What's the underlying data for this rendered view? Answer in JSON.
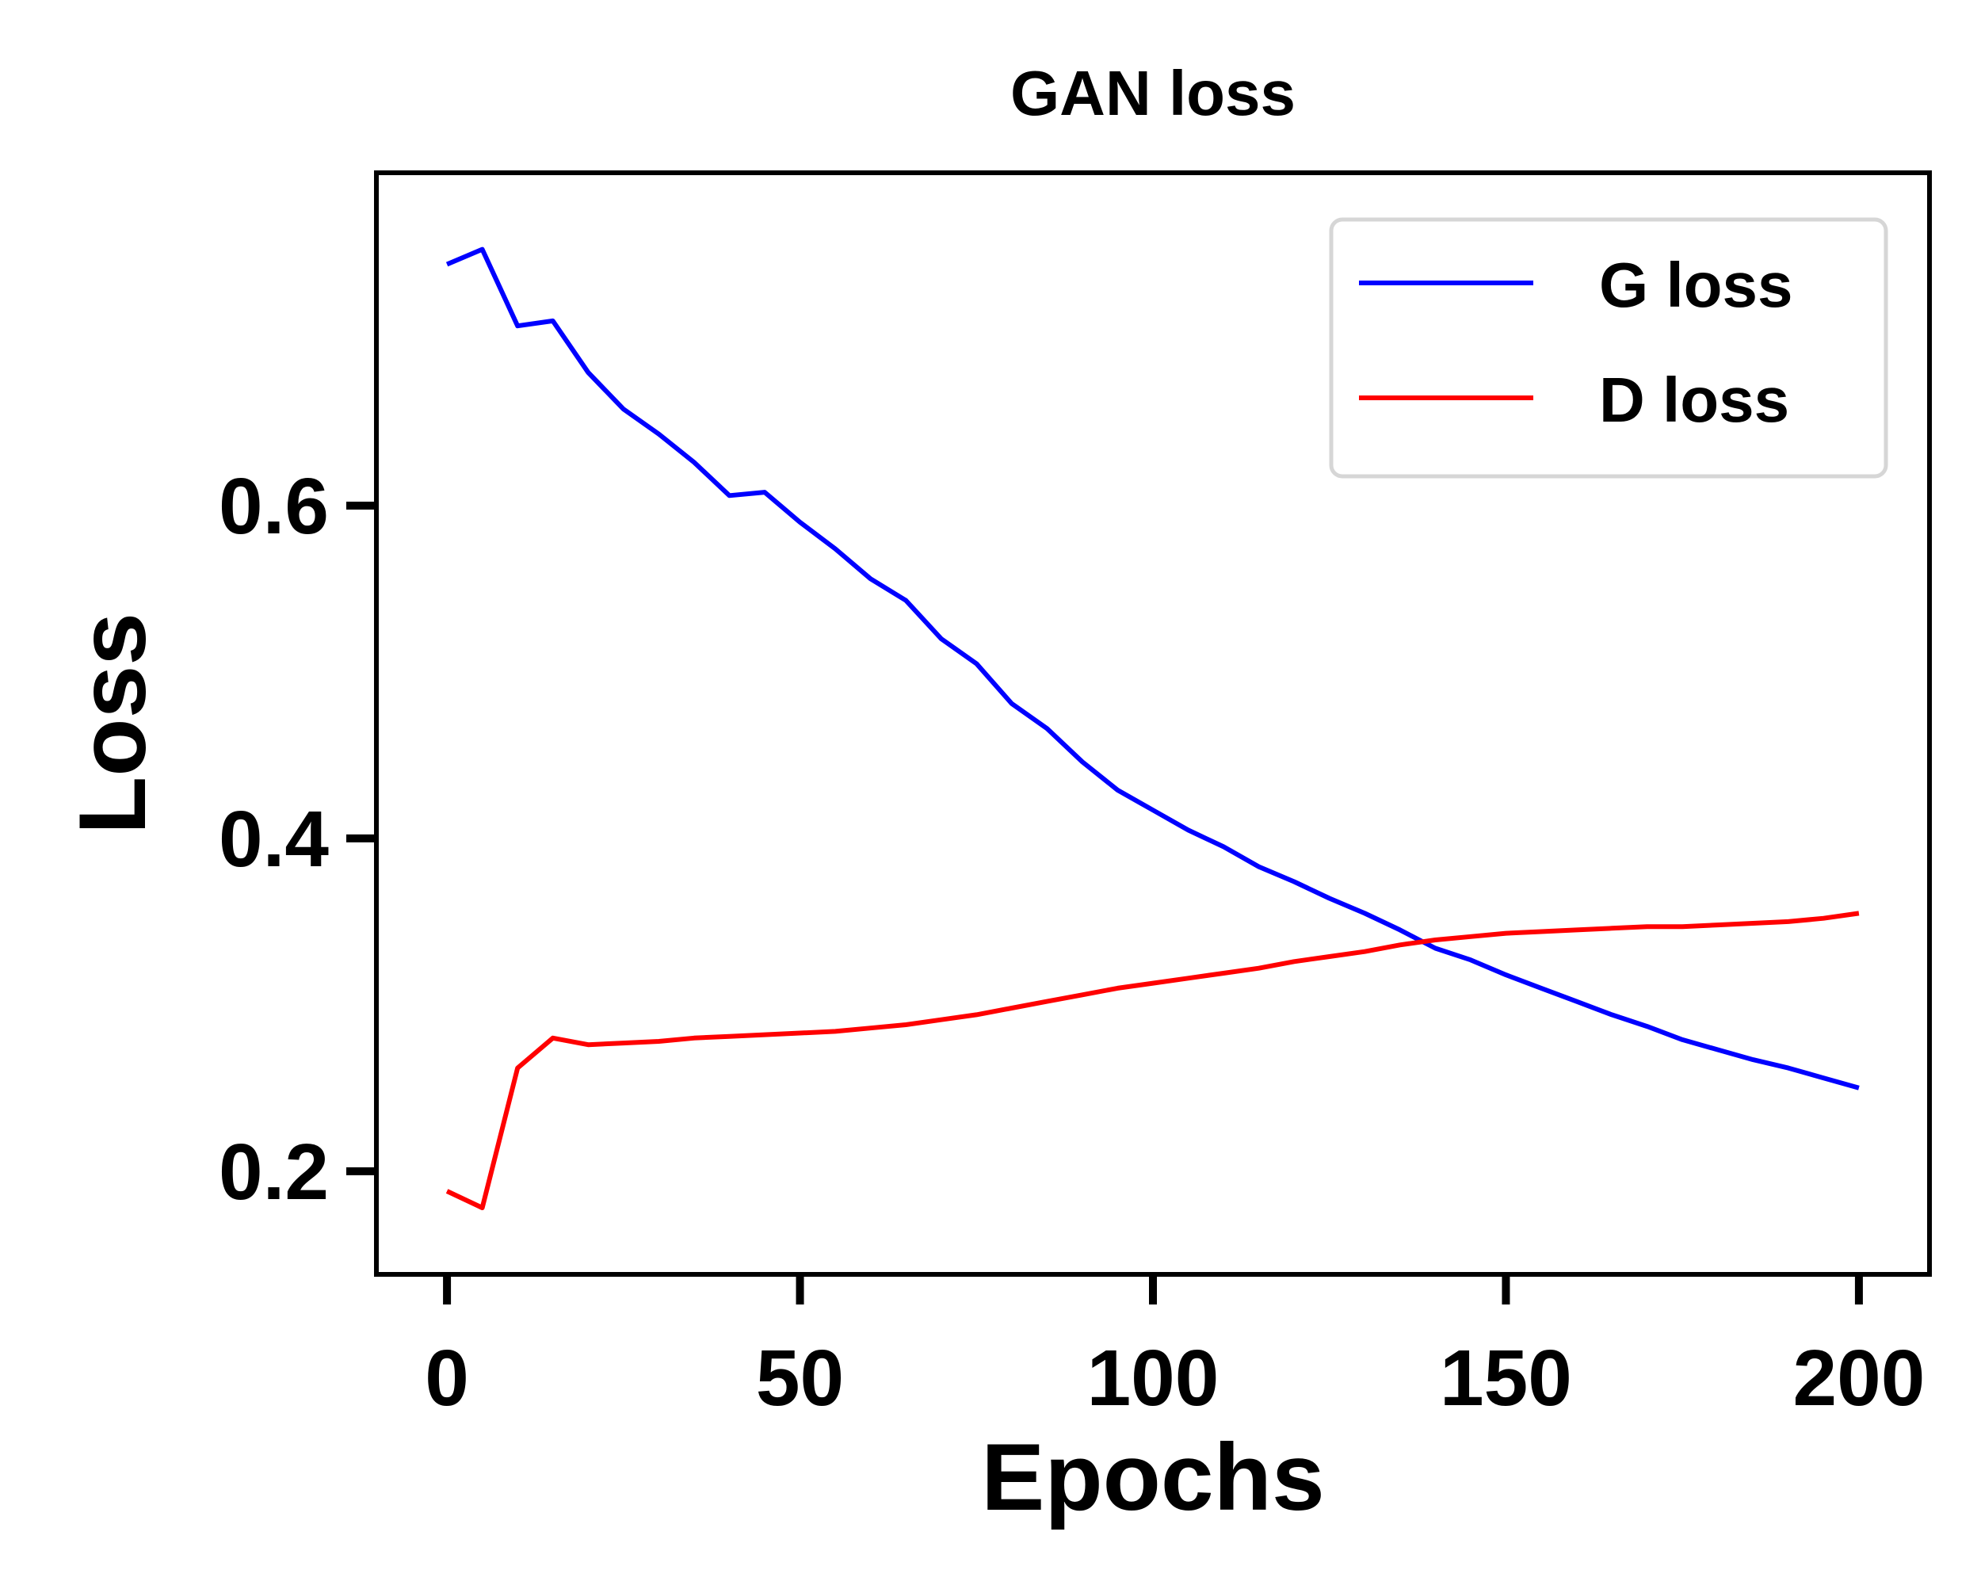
{
  "chart_data": {
    "type": "line",
    "title": "GAN loss",
    "xlabel": "Epochs",
    "ylabel": "Loss",
    "xlim": [
      -10,
      210
    ],
    "ylim": [
      0.138,
      0.8
    ],
    "xticks": [
      0,
      50,
      100,
      150,
      200
    ],
    "xtick_labels": [
      "0",
      "50",
      "100",
      "150",
      "200"
    ],
    "yticks": [
      0.2,
      0.4,
      0.6
    ],
    "ytick_labels": [
      "0.2",
      "0.4",
      "0.6"
    ],
    "grid": false,
    "legend_position": "top-right",
    "x": [
      0,
      5,
      10,
      15,
      20,
      25,
      30,
      35,
      40,
      45,
      50,
      55,
      60,
      65,
      70,
      75,
      80,
      85,
      90,
      95,
      100,
      105,
      110,
      115,
      120,
      125,
      130,
      135,
      140,
      145,
      150,
      155,
      160,
      165,
      170,
      175,
      180,
      185,
      190,
      195,
      200
    ],
    "series": [
      {
        "name": "G loss",
        "color": "#0000ff",
        "values": [
          0.745,
          0.754,
          0.708,
          0.711,
          0.68,
          0.658,
          0.643,
          0.626,
          0.606,
          0.608,
          0.59,
          0.574,
          0.556,
          0.543,
          0.52,
          0.505,
          0.481,
          0.466,
          0.446,
          0.429,
          0.417,
          0.405,
          0.395,
          0.383,
          0.374,
          0.364,
          0.355,
          0.345,
          0.334,
          0.327,
          0.318,
          0.31,
          0.302,
          0.294,
          0.287,
          0.279,
          0.273,
          0.267,
          0.262,
          0.256,
          0.25
        ]
      },
      {
        "name": "D loss",
        "color": "#ff0000",
        "values": [
          0.188,
          0.178,
          0.262,
          0.28,
          0.276,
          0.277,
          0.278,
          0.28,
          0.281,
          0.282,
          0.283,
          0.284,
          0.286,
          0.288,
          0.291,
          0.294,
          0.298,
          0.302,
          0.306,
          0.31,
          0.313,
          0.316,
          0.319,
          0.322,
          0.326,
          0.329,
          0.332,
          0.336,
          0.339,
          0.341,
          0.343,
          0.344,
          0.345,
          0.346,
          0.347,
          0.347,
          0.348,
          0.349,
          0.35,
          0.352,
          0.355
        ]
      }
    ]
  }
}
